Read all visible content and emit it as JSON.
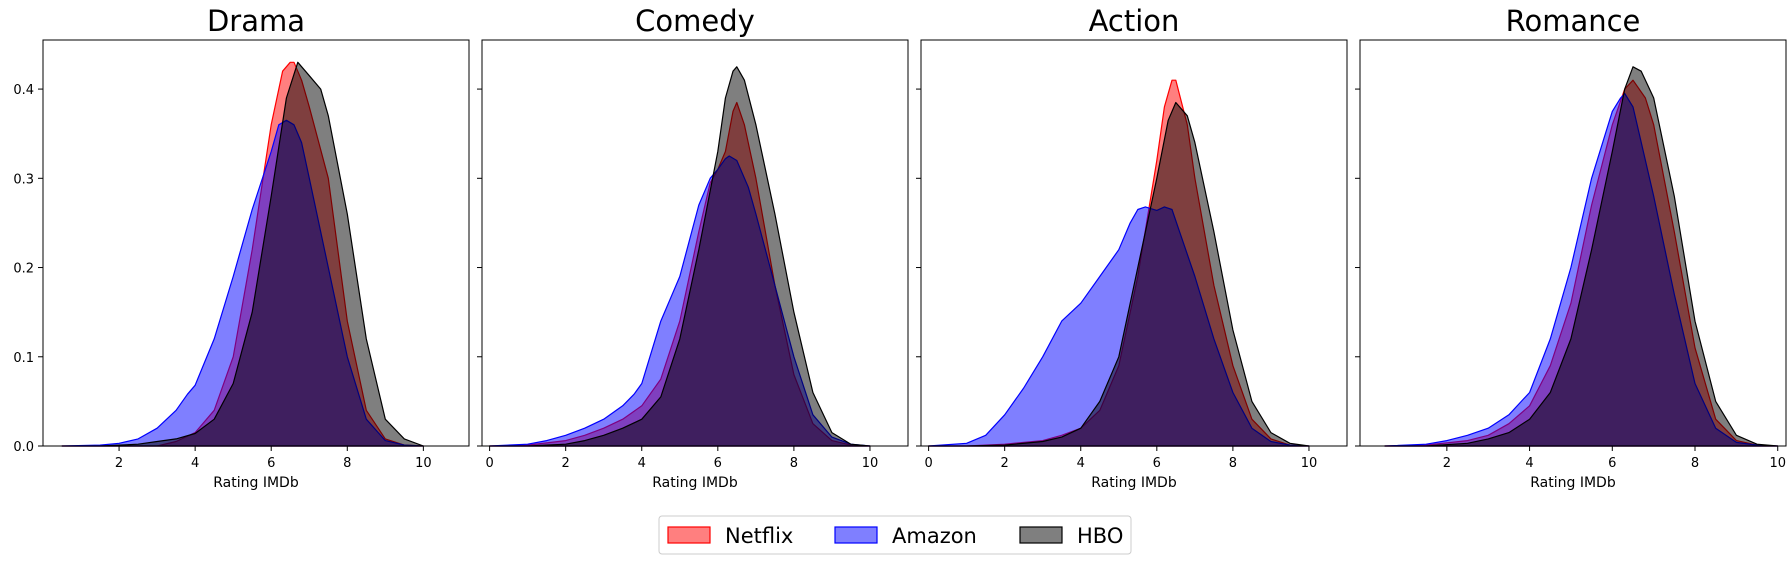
{
  "chart_data": {
    "type": "area",
    "subtype": "kde-density",
    "colors": {
      "Netflix": "#ff0000",
      "Amazon": "#0000ff",
      "HBO": "#000000"
    },
    "fill_opacity": 0.5,
    "legend": {
      "placement": "bottom-center",
      "entries": [
        "Netflix",
        "Amazon",
        "HBO"
      ]
    },
    "ylim": [
      0,
      0.455
    ],
    "yticks": [
      0.0,
      0.1,
      0.2,
      0.3,
      0.4
    ],
    "ytick_labels": [
      "0.0",
      "0.1",
      "0.2",
      "0.3",
      "0.4"
    ],
    "shared_y": true,
    "grid": false,
    "panels": [
      {
        "title": "Drama",
        "xlabel": "Rating IMDb",
        "xlim": [
          0.0,
          11.2
        ],
        "xticks": [
          2,
          4,
          6,
          8,
          10
        ],
        "xtick_labels": [
          "2",
          "4",
          "6",
          "8",
          "10"
        ],
        "series": [
          {
            "name": "Netflix",
            "x": [
              0.5,
              1.5,
              2.5,
              3.0,
              3.5,
              4.0,
              4.5,
              5.0,
              5.5,
              6.0,
              6.3,
              6.5,
              6.6,
              6.8,
              7.0,
              7.5,
              8.0,
              8.5,
              9.0,
              9.5,
              10.0
            ],
            "y": [
              0.0,
              0.0,
              0.0,
              0.0,
              0.005,
              0.015,
              0.04,
              0.1,
              0.22,
              0.36,
              0.42,
              0.43,
              0.43,
              0.41,
              0.38,
              0.3,
              0.14,
              0.04,
              0.008,
              0.001,
              0.0
            ]
          },
          {
            "name": "Amazon",
            "x": [
              0.5,
              1.5,
              2.0,
              2.5,
              3.0,
              3.5,
              3.8,
              4.0,
              4.5,
              5.0,
              5.5,
              6.0,
              6.2,
              6.4,
              6.6,
              6.8,
              7.0,
              7.5,
              8.0,
              8.5,
              9.0,
              9.5,
              10.0
            ],
            "y": [
              0.0,
              0.001,
              0.003,
              0.008,
              0.02,
              0.04,
              0.058,
              0.068,
              0.12,
              0.19,
              0.265,
              0.33,
              0.36,
              0.365,
              0.36,
              0.34,
              0.3,
              0.2,
              0.1,
              0.03,
              0.006,
              0.001,
              0.0
            ]
          },
          {
            "name": "HBO",
            "x": [
              0.5,
              1.5,
              2.5,
              3.0,
              3.5,
              4.0,
              4.5,
              5.0,
              5.5,
              6.0,
              6.4,
              6.7,
              7.0,
              7.3,
              7.5,
              8.0,
              8.5,
              9.0,
              9.5,
              10.0
            ],
            "y": [
              0.0,
              0.0,
              0.002,
              0.005,
              0.008,
              0.014,
              0.03,
              0.07,
              0.15,
              0.28,
              0.39,
              0.43,
              0.415,
              0.4,
              0.37,
              0.26,
              0.12,
              0.03,
              0.008,
              0.0
            ]
          }
        ]
      },
      {
        "title": "Comedy",
        "xlabel": "Rating IMDb",
        "xlim": [
          -0.2,
          11.0
        ],
        "xticks": [
          0,
          2,
          4,
          6,
          8,
          10
        ],
        "xtick_labels": [
          "0",
          "2",
          "4",
          "6",
          "8",
          "10"
        ],
        "series": [
          {
            "name": "Netflix",
            "x": [
              0.0,
              1.0,
              2.0,
              2.5,
              3.0,
              3.5,
              4.0,
              4.5,
              5.0,
              5.5,
              5.8,
              6.0,
              6.2,
              6.4,
              6.5,
              6.7,
              7.0,
              7.5,
              8.0,
              8.5,
              9.0,
              9.5,
              10.0
            ],
            "y": [
              0.0,
              0.001,
              0.006,
              0.012,
              0.02,
              0.03,
              0.045,
              0.075,
              0.14,
              0.24,
              0.295,
              0.31,
              0.33,
              0.375,
              0.385,
              0.36,
              0.3,
              0.18,
              0.08,
              0.025,
              0.006,
              0.001,
              0.0
            ]
          },
          {
            "name": "Amazon",
            "x": [
              0.0,
              1.0,
              1.5,
              2.0,
              2.5,
              3.0,
              3.5,
              3.8,
              4.0,
              4.5,
              4.8,
              5.0,
              5.5,
              5.8,
              6.0,
              6.2,
              6.3,
              6.5,
              6.8,
              7.0,
              7.5,
              8.0,
              8.5,
              9.0,
              9.5,
              10.0
            ],
            "y": [
              0.0,
              0.002,
              0.006,
              0.012,
              0.02,
              0.03,
              0.045,
              0.058,
              0.07,
              0.14,
              0.17,
              0.19,
              0.27,
              0.3,
              0.31,
              0.322,
              0.325,
              0.32,
              0.29,
              0.26,
              0.18,
              0.1,
              0.035,
              0.01,
              0.002,
              0.0
            ]
          },
          {
            "name": "HBO",
            "x": [
              0.0,
              1.0,
              2.0,
              2.5,
              3.0,
              3.5,
              4.0,
              4.5,
              5.0,
              5.5,
              6.0,
              6.2,
              6.4,
              6.5,
              6.7,
              7.0,
              7.5,
              8.0,
              8.5,
              9.0,
              9.5,
              10.0
            ],
            "y": [
              0.0,
              0.0,
              0.002,
              0.006,
              0.012,
              0.02,
              0.03,
              0.055,
              0.12,
              0.22,
              0.33,
              0.39,
              0.42,
              0.425,
              0.41,
              0.36,
              0.26,
              0.15,
              0.06,
              0.015,
              0.002,
              0.0
            ]
          }
        ]
      },
      {
        "title": "Action",
        "xlabel": "Rating IMDb",
        "xlim": [
          -0.2,
          11.0
        ],
        "xticks": [
          0,
          2,
          4,
          6,
          8,
          10
        ],
        "xtick_labels": [
          "0",
          "2",
          "4",
          "6",
          "8",
          "10"
        ],
        "series": [
          {
            "name": "Netflix",
            "x": [
              0.0,
              1.0,
              2.0,
              3.0,
              3.5,
              4.0,
              4.5,
              5.0,
              5.5,
              6.0,
              6.2,
              6.4,
              6.5,
              6.8,
              7.0,
              7.5,
              8.0,
              8.5,
              9.0,
              9.5,
              10.0
            ],
            "y": [
              0.0,
              0.0,
              0.002,
              0.006,
              0.012,
              0.02,
              0.04,
              0.09,
              0.19,
              0.32,
              0.38,
              0.41,
              0.41,
              0.36,
              0.3,
              0.18,
              0.09,
              0.03,
              0.008,
              0.001,
              0.0
            ]
          },
          {
            "name": "Amazon",
            "x": [
              0.0,
              1.0,
              1.5,
              2.0,
              2.5,
              3.0,
              3.5,
              4.0,
              4.5,
              5.0,
              5.3,
              5.5,
              5.7,
              6.0,
              6.2,
              6.4,
              6.6,
              7.0,
              7.5,
              8.0,
              8.5,
              9.0,
              9.5,
              10.0
            ],
            "y": [
              0.0,
              0.003,
              0.012,
              0.035,
              0.065,
              0.1,
              0.14,
              0.16,
              0.19,
              0.22,
              0.25,
              0.265,
              0.268,
              0.264,
              0.268,
              0.265,
              0.24,
              0.19,
              0.12,
              0.06,
              0.02,
              0.005,
              0.001,
              0.0
            ]
          },
          {
            "name": "HBO",
            "x": [
              0.0,
              1.0,
              2.0,
              3.0,
              3.5,
              4.0,
              4.5,
              5.0,
              5.5,
              6.0,
              6.3,
              6.5,
              6.8,
              7.0,
              7.5,
              8.0,
              8.5,
              9.0,
              9.5,
              10.0
            ],
            "y": [
              0.0,
              0.0,
              0.001,
              0.005,
              0.01,
              0.02,
              0.05,
              0.1,
              0.2,
              0.3,
              0.365,
              0.385,
              0.37,
              0.34,
              0.24,
              0.13,
              0.05,
              0.015,
              0.003,
              0.0
            ]
          }
        ]
      },
      {
        "title": "Romance",
        "xlabel": "Rating IMDb",
        "xlim": [
          -0.1,
          10.2
        ],
        "xticks": [
          2,
          4,
          6,
          8,
          10
        ],
        "xtick_labels": [
          "2",
          "4",
          "6",
          "8",
          "10"
        ],
        "series": [
          {
            "name": "Netflix",
            "x": [
              0.5,
              1.5,
              2.5,
              3.0,
              3.5,
              4.0,
              4.5,
              5.0,
              5.5,
              6.0,
              6.3,
              6.5,
              6.8,
              7.0,
              7.5,
              8.0,
              8.5,
              9.0,
              9.5,
              10.0
            ],
            "y": [
              0.0,
              0.001,
              0.006,
              0.012,
              0.025,
              0.045,
              0.09,
              0.16,
              0.27,
              0.36,
              0.4,
              0.41,
              0.39,
              0.36,
              0.24,
              0.11,
              0.03,
              0.006,
              0.001,
              0.0
            ]
          },
          {
            "name": "Amazon",
            "x": [
              0.5,
              1.5,
              2.0,
              2.5,
              3.0,
              3.5,
              3.8,
              4.0,
              4.5,
              5.0,
              5.5,
              6.0,
              6.2,
              6.3,
              6.5,
              7.0,
              7.5,
              8.0,
              8.5,
              9.0,
              9.5,
              10.0
            ],
            "y": [
              0.0,
              0.002,
              0.006,
              0.012,
              0.02,
              0.035,
              0.05,
              0.06,
              0.12,
              0.2,
              0.3,
              0.375,
              0.39,
              0.395,
              0.38,
              0.28,
              0.17,
              0.07,
              0.02,
              0.004,
              0.001,
              0.0
            ]
          },
          {
            "name": "HBO",
            "x": [
              0.5,
              1.5,
              2.5,
              3.0,
              3.5,
              4.0,
              4.5,
              5.0,
              5.5,
              6.0,
              6.3,
              6.5,
              6.7,
              7.0,
              7.5,
              8.0,
              8.5,
              9.0,
              9.5,
              10.0
            ],
            "y": [
              0.0,
              0.0,
              0.003,
              0.008,
              0.015,
              0.03,
              0.06,
              0.12,
              0.22,
              0.33,
              0.4,
              0.425,
              0.42,
              0.39,
              0.28,
              0.14,
              0.05,
              0.012,
              0.002,
              0.0
            ]
          }
        ]
      }
    ]
  }
}
